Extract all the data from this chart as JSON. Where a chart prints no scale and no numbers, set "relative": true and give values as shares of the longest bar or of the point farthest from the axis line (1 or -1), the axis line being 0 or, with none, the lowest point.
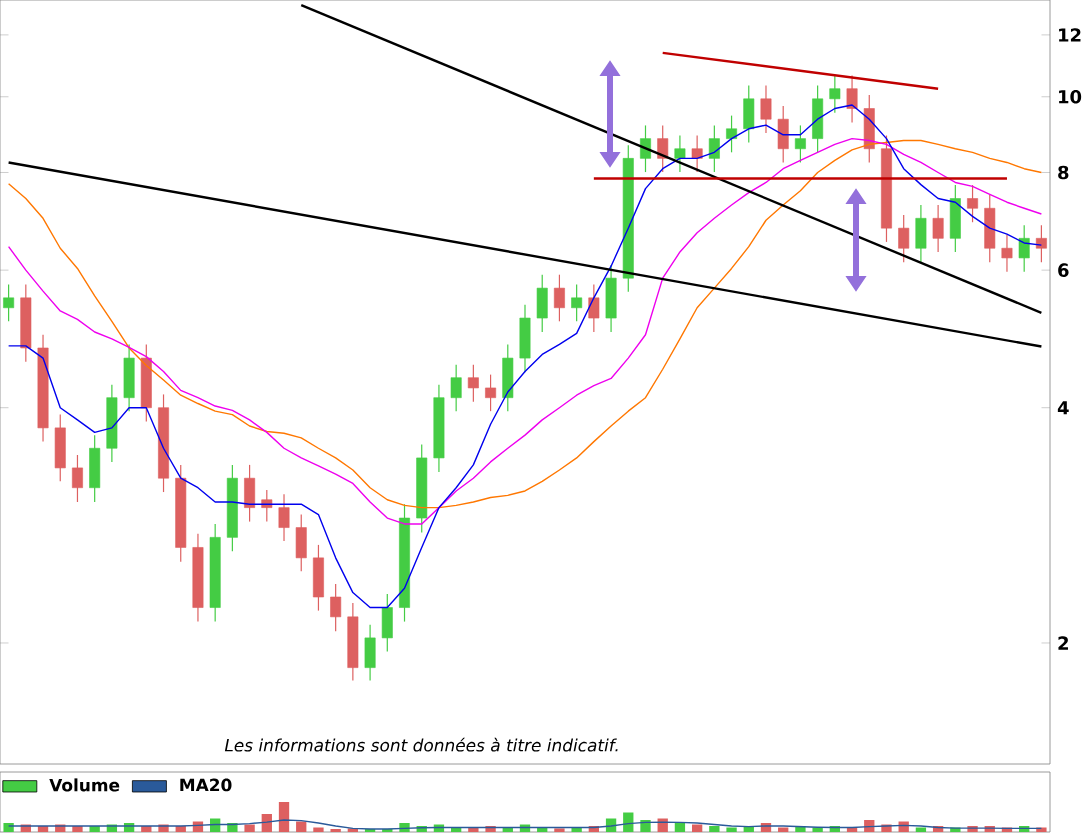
{
  "chart_data": [
    {
      "type": "candlestick",
      "categories": [
        null,
        null,
        null,
        null,
        null,
        null,
        null,
        null,
        null,
        null,
        null,
        null,
        null,
        null,
        null,
        null,
        null,
        null,
        null,
        null,
        null,
        null,
        null,
        null,
        null,
        null,
        null,
        null,
        null,
        null,
        null,
        null,
        null,
        null,
        null,
        null,
        null,
        null,
        null,
        null,
        null,
        null,
        null,
        null,
        null,
        null,
        null,
        null,
        null,
        null,
        null,
        null,
        null,
        null,
        null,
        null,
        null,
        null,
        null,
        null,
        null
      ],
      "ohlc": [
        [
          5.37,
          5.75,
          5.16,
          5.53
        ],
        [
          5.53,
          5.75,
          4.58,
          4.77
        ],
        [
          4.77,
          4.96,
          3.62,
          3.77
        ],
        [
          3.77,
          3.92,
          3.22,
          3.35
        ],
        [
          3.35,
          3.48,
          3.03,
          3.16
        ],
        [
          3.16,
          3.69,
          3.03,
          3.55
        ],
        [
          3.55,
          4.28,
          3.41,
          4.12
        ],
        [
          4.12,
          4.82,
          3.96,
          4.63
        ],
        [
          4.63,
          4.82,
          3.84,
          4.0
        ],
        [
          4.0,
          4.16,
          3.12,
          3.25
        ],
        [
          3.25,
          3.38,
          2.54,
          2.65
        ],
        [
          2.65,
          2.76,
          2.13,
          2.22
        ],
        [
          2.22,
          2.84,
          2.13,
          2.73
        ],
        [
          2.73,
          3.38,
          2.62,
          3.25
        ],
        [
          3.25,
          3.38,
          2.86,
          2.98
        ],
        [
          3.05,
          3.14,
          2.86,
          2.98
        ],
        [
          2.98,
          3.1,
          2.7,
          2.81
        ],
        [
          2.81,
          2.92,
          2.47,
          2.57
        ],
        [
          2.57,
          2.67,
          2.2,
          2.29
        ],
        [
          2.29,
          2.38,
          2.07,
          2.16
        ],
        [
          2.16,
          2.25,
          1.79,
          1.86
        ],
        [
          1.86,
          2.11,
          1.79,
          2.03
        ],
        [
          2.03,
          2.31,
          1.95,
          2.22
        ],
        [
          2.22,
          3.01,
          2.13,
          2.89
        ],
        [
          2.89,
          3.59,
          2.77,
          3.45
        ],
        [
          3.45,
          4.28,
          3.31,
          4.12
        ],
        [
          4.12,
          4.54,
          3.96,
          4.37
        ],
        [
          4.37,
          4.54,
          4.07,
          4.24
        ],
        [
          4.24,
          4.41,
          3.96,
          4.12
        ],
        [
          4.12,
          4.82,
          3.96,
          4.63
        ],
        [
          4.63,
          5.42,
          4.44,
          5.21
        ],
        [
          5.21,
          5.92,
          5.0,
          5.69
        ],
        [
          5.69,
          5.92,
          5.16,
          5.37
        ],
        [
          5.37,
          5.75,
          5.16,
          5.53
        ],
        [
          5.53,
          5.75,
          5.0,
          5.21
        ],
        [
          5.21,
          6.09,
          5.0,
          5.86
        ],
        [
          5.86,
          8.67,
          5.63,
          8.34
        ],
        [
          8.34,
          9.19,
          8.01,
          8.84
        ],
        [
          8.84,
          9.19,
          8.01,
          8.34
        ],
        [
          8.34,
          8.92,
          8.01,
          8.58
        ],
        [
          8.58,
          8.92,
          8.01,
          8.34
        ],
        [
          8.34,
          9.19,
          8.01,
          8.84
        ],
        [
          8.84,
          9.46,
          8.49,
          9.1
        ],
        [
          9.1,
          10.34,
          8.74,
          9.94
        ],
        [
          9.94,
          10.34,
          8.99,
          9.36
        ],
        [
          9.36,
          9.73,
          8.24,
          8.58
        ],
        [
          8.58,
          9.19,
          8.24,
          8.84
        ],
        [
          8.84,
          10.34,
          8.49,
          9.94
        ],
        [
          9.94,
          10.65,
          9.54,
          10.24
        ],
        [
          10.24,
          10.65,
          9.27,
          9.66
        ],
        [
          9.66,
          10.05,
          8.24,
          8.58
        ],
        [
          8.58,
          8.92,
          6.52,
          6.79
        ],
        [
          6.79,
          7.06,
          6.14,
          6.4
        ],
        [
          6.4,
          7.27,
          6.14,
          6.99
        ],
        [
          6.99,
          7.27,
          6.33,
          6.59
        ],
        [
          6.59,
          7.71,
          6.33,
          7.41
        ],
        [
          7.41,
          7.71,
          6.91,
          7.2
        ],
        [
          7.2,
          7.49,
          6.14,
          6.4
        ],
        [
          6.4,
          6.66,
          5.97,
          6.22
        ],
        [
          6.22,
          6.85,
          5.97,
          6.59
        ],
        [
          6.59,
          6.85,
          6.14,
          6.4
        ]
      ],
      "colors": [
        "#44cc44",
        "#dd6060",
        "#dd6060",
        "#dd6060",
        "#dd6060",
        "#44cc44",
        "#44cc44",
        "#44cc44",
        "#dd6060",
        "#dd6060",
        "#dd6060",
        "#dd6060",
        "#44cc44",
        "#44cc44",
        "#dd6060",
        "#dd6060",
        "#dd6060",
        "#dd6060",
        "#dd6060",
        "#dd6060",
        "#dd6060",
        "#44cc44",
        "#44cc44",
        "#44cc44",
        "#44cc44",
        "#44cc44",
        "#44cc44",
        "#dd6060",
        "#dd6060",
        "#44cc44",
        "#44cc44",
        "#44cc44",
        "#dd6060",
        "#44cc44",
        "#dd6060",
        "#44cc44",
        "#44cc44",
        "#44cc44",
        "#dd6060",
        "#44cc44",
        "#dd6060",
        "#44cc44",
        "#44cc44",
        "#44cc44",
        "#dd6060",
        "#dd6060",
        "#44cc44",
        "#44cc44",
        "#44cc44",
        "#dd6060",
        "#dd6060",
        "#dd6060",
        "#dd6060",
        "#44cc44",
        "#dd6060",
        "#44cc44",
        "#dd6060",
        "#dd6060",
        "#dd6060",
        "#44cc44",
        "#dd6060"
      ],
      "series": [
        {
          "type": "line",
          "color": "#ff7700",
          "values": [
            7.74,
            7.41,
            6.99,
            6.4,
            6.03,
            5.56,
            5.16,
            4.77,
            4.53,
            4.34,
            4.15,
            4.05,
            3.96,
            3.92,
            3.79,
            3.73,
            3.71,
            3.66,
            3.55,
            3.45,
            3.33,
            3.16,
            3.05,
            3.0,
            2.98,
            2.98,
            3.0,
            3.03,
            3.07,
            3.09,
            3.13,
            3.22,
            3.33,
            3.45,
            3.62,
            3.79,
            3.96,
            4.12,
            4.48,
            4.9,
            5.37,
            5.69,
            6.03,
            6.43,
            6.95,
            7.27,
            7.58,
            8.0,
            8.29,
            8.55,
            8.69,
            8.74,
            8.79,
            8.79,
            8.69,
            8.58,
            8.49,
            8.34,
            8.24,
            8.09,
            8.0
          ]
        },
        {
          "type": "line",
          "color": "#ee00ee",
          "values": [
            6.43,
            6.0,
            5.64,
            5.32,
            5.19,
            5.0,
            4.9,
            4.78,
            4.65,
            4.45,
            4.21,
            4.12,
            4.02,
            3.97,
            3.86,
            3.72,
            3.55,
            3.45,
            3.37,
            3.29,
            3.2,
            3.03,
            2.89,
            2.84,
            2.84,
            2.98,
            3.13,
            3.25,
            3.41,
            3.55,
            3.69,
            3.86,
            4.0,
            4.15,
            4.27,
            4.36,
            4.63,
            4.96,
            5.86,
            6.33,
            6.7,
            6.99,
            7.27,
            7.54,
            7.77,
            8.09,
            8.29,
            8.49,
            8.69,
            8.84,
            8.79,
            8.69,
            8.44,
            8.24,
            8.0,
            7.77,
            7.68,
            7.5,
            7.33,
            7.2,
            7.08
          ]
        },
        {
          "type": "line",
          "color": "#0000ee",
          "values": [
            4.8,
            4.8,
            4.63,
            4.0,
            3.86,
            3.72,
            3.77,
            4.0,
            4.0,
            3.55,
            3.25,
            3.16,
            3.03,
            3.03,
            3.01,
            3.01,
            3.01,
            3.01,
            2.92,
            2.57,
            2.32,
            2.22,
            2.22,
            2.35,
            2.65,
            2.98,
            3.16,
            3.38,
            3.81,
            4.19,
            4.45,
            4.68,
            4.82,
            4.98,
            5.53,
            6.07,
            6.79,
            7.63,
            8.09,
            8.34,
            8.34,
            8.49,
            8.84,
            9.1,
            9.2,
            8.94,
            8.94,
            9.36,
            9.66,
            9.76,
            9.36,
            8.84,
            8.09,
            7.72,
            7.41,
            7.33,
            7.03,
            6.79,
            6.67,
            6.5,
            6.46
          ]
        },
        {
          "type": "line",
          "color": "#000000",
          "values": [
            8.24,
            null,
            null,
            null,
            null,
            null,
            null,
            null,
            null,
            null,
            null,
            null,
            null,
            null,
            null,
            null,
            null,
            null,
            null,
            null,
            null,
            null,
            null,
            null,
            null,
            null,
            null,
            null,
            null,
            null,
            null,
            null,
            null,
            null,
            null,
            null,
            null,
            null,
            null,
            null,
            null,
            null,
            null,
            null,
            null,
            null,
            null,
            null,
            null,
            null,
            null,
            null,
            null,
            null,
            null,
            null,
            null,
            null,
            null,
            null,
            4.79
          ]
        },
        {
          "type": "line",
          "color": "#000000",
          "values": [
            null,
            null,
            null,
            null,
            null,
            null,
            null,
            null,
            null,
            null,
            null,
            null,
            null,
            null,
            null,
            null,
            null,
            13.1,
            null,
            null,
            null,
            null,
            null,
            null,
            null,
            null,
            null,
            null,
            null,
            null,
            null,
            null,
            null,
            null,
            null,
            null,
            null,
            null,
            null,
            null,
            null,
            null,
            null,
            null,
            null,
            null,
            null,
            null,
            null,
            null,
            null,
            null,
            null,
            null,
            null,
            null,
            null,
            null,
            null,
            null,
            5.29
          ]
        },
        {
          "type": "line",
          "color": "#c00000",
          "values": [
            null,
            null,
            null,
            null,
            null,
            null,
            null,
            null,
            null,
            null,
            null,
            null,
            null,
            null,
            null,
            null,
            null,
            null,
            null,
            null,
            null,
            null,
            null,
            null,
            null,
            null,
            null,
            null,
            null,
            null,
            null,
            null,
            null,
            null,
            null,
            null,
            null,
            null,
            11.38,
            null,
            null,
            null,
            null,
            null,
            null,
            null,
            null,
            null,
            null,
            null,
            null,
            null,
            null,
            null,
            10.24,
            null,
            null,
            null,
            null,
            null,
            null
          ]
        },
        {
          "type": "line",
          "color": "#c00000",
          "values": [
            null,
            null,
            null,
            null,
            null,
            null,
            null,
            null,
            null,
            null,
            null,
            null,
            null,
            null,
            null,
            null,
            null,
            null,
            null,
            null,
            null,
            null,
            null,
            null,
            null,
            null,
            null,
            null,
            null,
            null,
            null,
            null,
            null,
            null,
            7.86,
            null,
            null,
            null,
            null,
            null,
            null,
            null,
            null,
            null,
            null,
            null,
            null,
            null,
            null,
            null,
            null,
            null,
            null,
            null,
            null,
            null,
            null,
            null,
            7.86,
            null,
            null
          ]
        }
      ],
      "ylim": [
        1.4,
        13.3
      ],
      "yticks": [
        2,
        4,
        6,
        8,
        10,
        12
      ],
      "log": true,
      "annotations": [
        "Les informations sont données à titre indicatif."
      ]
    },
    {
      "type": "bar",
      "relative": true,
      "legend": "top left",
      "categories": [
        null,
        null,
        null,
        null,
        null,
        null,
        null,
        null,
        null,
        null,
        null,
        null,
        null,
        null,
        null,
        null,
        null,
        null,
        null,
        null,
        null,
        null,
        null,
        null,
        null,
        null,
        null,
        null,
        null,
        null,
        null,
        null,
        null,
        null,
        null,
        null,
        null,
        null,
        null,
        null,
        null,
        null,
        null,
        null,
        null,
        null,
        null,
        null,
        null,
        null,
        null,
        null,
        null,
        null,
        null,
        null,
        null,
        null,
        null,
        null,
        null
      ],
      "series": [
        {
          "name": "Volume",
          "values": [
            0.3,
            0.25,
            0.2,
            0.25,
            0.2,
            0.2,
            0.25,
            0.3,
            0.2,
            0.25,
            0.2,
            0.35,
            0.45,
            0.3,
            0.25,
            0.6,
            1.0,
            0.35,
            0.15,
            0.1,
            0.12,
            0.1,
            0.1,
            0.3,
            0.2,
            0.25,
            0.15,
            0.15,
            0.2,
            0.15,
            0.25,
            0.15,
            0.12,
            0.15,
            0.2,
            0.45,
            0.65,
            0.4,
            0.45,
            0.3,
            0.25,
            0.2,
            0.15,
            0.2,
            0.3,
            0.15,
            0.2,
            0.15,
            0.2,
            0.15,
            0.4,
            0.25,
            0.35,
            0.15,
            0.2,
            0.15,
            0.2,
            0.2,
            0.15,
            0.2,
            0.15
          ],
          "colors": [
            "#44cc44",
            "#dd6060",
            "#dd6060",
            "#dd6060",
            "#dd6060",
            "#44cc44",
            "#44cc44",
            "#44cc44",
            "#dd6060",
            "#dd6060",
            "#dd6060",
            "#dd6060",
            "#44cc44",
            "#44cc44",
            "#dd6060",
            "#dd6060",
            "#dd6060",
            "#dd6060",
            "#dd6060",
            "#dd6060",
            "#dd6060",
            "#44cc44",
            "#44cc44",
            "#44cc44",
            "#44cc44",
            "#44cc44",
            "#44cc44",
            "#dd6060",
            "#dd6060",
            "#44cc44",
            "#44cc44",
            "#44cc44",
            "#dd6060",
            "#44cc44",
            "#dd6060",
            "#44cc44",
            "#44cc44",
            "#44cc44",
            "#dd6060",
            "#44cc44",
            "#dd6060",
            "#44cc44",
            "#44cc44",
            "#44cc44",
            "#dd6060",
            "#dd6060",
            "#44cc44",
            "#44cc44",
            "#44cc44",
            "#dd6060",
            "#dd6060",
            "#dd6060",
            "#dd6060",
            "#44cc44",
            "#dd6060",
            "#44cc44",
            "#dd6060",
            "#dd6060",
            "#dd6060",
            "#44cc44",
            "#dd6060"
          ]
        },
        {
          "name": "MA20",
          "type": "line",
          "color": "#2a5a9a",
          "values": [
            0.2,
            0.2,
            0.2,
            0.2,
            0.2,
            0.2,
            0.2,
            0.2,
            0.2,
            0.2,
            0.2,
            0.22,
            0.25,
            0.25,
            0.28,
            0.33,
            0.4,
            0.38,
            0.3,
            0.2,
            0.12,
            0.1,
            0.1,
            0.12,
            0.14,
            0.15,
            0.15,
            0.15,
            0.15,
            0.15,
            0.15,
            0.15,
            0.15,
            0.15,
            0.15,
            0.2,
            0.28,
            0.32,
            0.33,
            0.32,
            0.3,
            0.25,
            0.2,
            0.18,
            0.2,
            0.2,
            0.18,
            0.16,
            0.15,
            0.15,
            0.18,
            0.2,
            0.22,
            0.2,
            0.15,
            0.13,
            0.13,
            0.13,
            0.12,
            0.12,
            0.12
          ]
        }
      ]
    }
  ]
}
